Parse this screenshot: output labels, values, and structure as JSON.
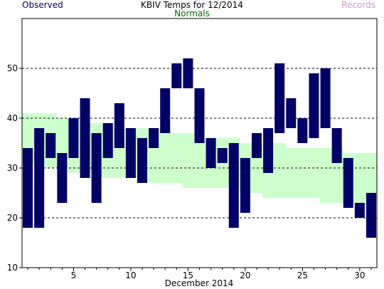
{
  "header": {
    "title": "KBIV Temps for 12/2014",
    "observed_label": "Observed",
    "normals_label": "Normals",
    "records_label": "Records"
  },
  "colors": {
    "observed": "#000066",
    "normals": "#ccffcc",
    "records_text": "#cc99cc",
    "normals_text": "#006600",
    "gridline": "#000000"
  },
  "chart_data": {
    "type": "bar",
    "title": "KBIV Temps for 12/2014",
    "xlabel": "December 2014",
    "ylabel": "",
    "x_ticks": [
      5,
      10,
      15,
      20,
      25,
      30
    ],
    "y_ticks": [
      10,
      20,
      30,
      40,
      50
    ],
    "ylim": [
      10,
      60
    ],
    "xlim": [
      0.5,
      31.5
    ],
    "grid": "horizontal dashed",
    "legend": [
      "Observed",
      "Normals",
      "Records"
    ],
    "days": [
      1,
      2,
      3,
      4,
      5,
      6,
      7,
      8,
      9,
      10,
      11,
      12,
      13,
      14,
      15,
      16,
      17,
      18,
      19,
      20,
      21,
      22,
      23,
      24,
      25,
      26,
      27,
      28,
      29,
      30,
      31
    ],
    "series": [
      {
        "name": "Observed",
        "lows": [
          18,
          18,
          32,
          23,
          32,
          28,
          23,
          32,
          34,
          28,
          27,
          34,
          37,
          46,
          46,
          35,
          30,
          31,
          18,
          21,
          32,
          29,
          37,
          38,
          35,
          36,
          38,
          31,
          22,
          20,
          16
        ],
        "highs": [
          34,
          38,
          37,
          33,
          40,
          44,
          37,
          39,
          43,
          38,
          36,
          38,
          46,
          51,
          52,
          46,
          36,
          34,
          35,
          32,
          37,
          38,
          51,
          44,
          40,
          49,
          50,
          38,
          32,
          23,
          25
        ]
      },
      {
        "name": "Normals",
        "lows": [
          31,
          31,
          30,
          30,
          29,
          29,
          28,
          28,
          28,
          28,
          27,
          27,
          27,
          27,
          26,
          26,
          26,
          26,
          26,
          25,
          25,
          24,
          24,
          24,
          24,
          24,
          23,
          23,
          23,
          23,
          23
        ],
        "highs": [
          41,
          41,
          41,
          40,
          40,
          39,
          39,
          39,
          38,
          38,
          38,
          38,
          38,
          37,
          37,
          36,
          36,
          36,
          36,
          35,
          35,
          35,
          35,
          34,
          34,
          34,
          34,
          34,
          33,
          33,
          33
        ]
      }
    ]
  }
}
